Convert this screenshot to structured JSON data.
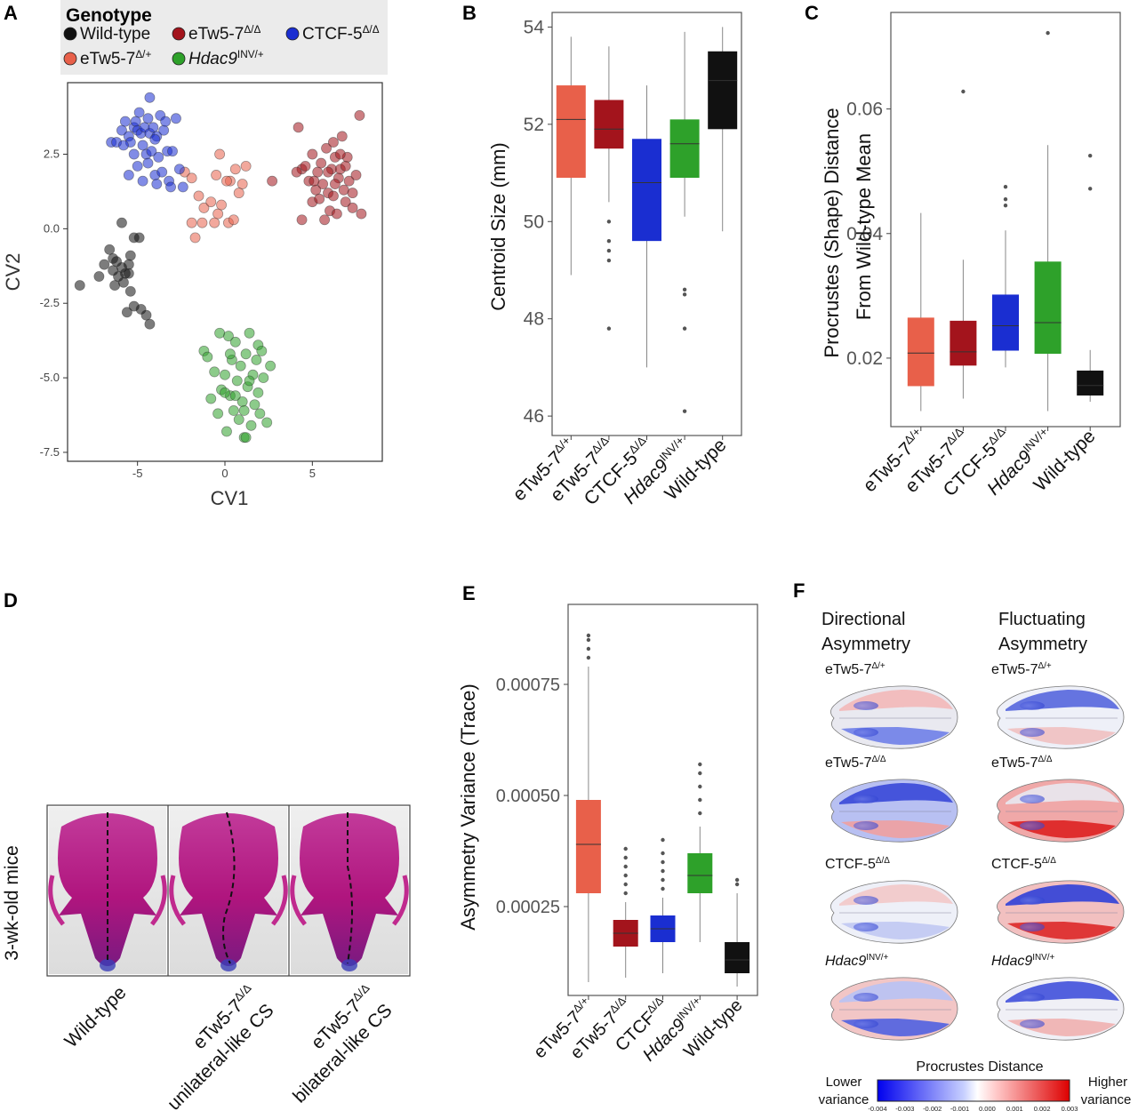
{
  "colors": {
    "wild_type": "#111111",
    "eTw5_het": "#e8604a",
    "eTw5_hom": "#a3141c",
    "ctcf": "#1a2ed1",
    "hdac9": "#2ea12a",
    "legend_bg": "#ebebeb",
    "scale_low": "#0000ff",
    "scale_mid": "#f2f2f2",
    "scale_high": "#e60000"
  },
  "panels": {
    "a": {
      "letter": "A"
    },
    "b": {
      "letter": "B"
    },
    "c": {
      "letter": "C"
    },
    "d": {
      "letter": "D"
    },
    "e": {
      "letter": "E"
    },
    "f": {
      "letter": "F"
    }
  },
  "legend": {
    "title": "Genotype",
    "entries": [
      {
        "key": "wild_type",
        "label": "Wild-type",
        "sup": ""
      },
      {
        "key": "eTw5_hom",
        "label": "eTw5-7",
        "sup": "Δ/Δ"
      },
      {
        "key": "ctcf",
        "label": "CTCF-5",
        "sup": "Δ/Δ"
      },
      {
        "key": "eTw5_het",
        "label": "eTw5-7",
        "sup": "Δ/+"
      },
      {
        "key": "hdac9",
        "label": "Hdac9",
        "sup": "INV/+"
      }
    ]
  },
  "genotype_labels": [
    {
      "key": "eTw5_het",
      "label": "eTw5-7",
      "sup": "Δ/+"
    },
    {
      "key": "eTw5_hom",
      "label": "eTw5-7",
      "sup": "Δ/Δ"
    },
    {
      "key": "ctcf",
      "label": "CTCF-5",
      "sup": "Δ/Δ"
    },
    {
      "key": "hdac9",
      "label": "Hdac9",
      "sup": "INV/+"
    },
    {
      "key": "wild_type",
      "label": "Wild-type",
      "sup": ""
    }
  ],
  "panel_e_ctcf_sup": "Δ/Δ",
  "panel_e_ctcf_label": "CTCF",
  "chart_data": [
    {
      "id": "A",
      "type": "scatter",
      "xlabel": "CV1",
      "ylabel": "CV2",
      "xlim": [
        -9,
        9
      ],
      "ylim": [
        -7.8,
        4.9
      ],
      "xticks": [
        -5,
        0,
        5
      ],
      "yticks": [
        2.5,
        0.0,
        -2.5,
        -5.0,
        -7.5
      ],
      "ytick_labels": [
        "2.5",
        "0.0",
        "-2.5",
        "-5.0",
        "-7.5"
      ],
      "series": [
        {
          "name": "Wild-type",
          "key": "wild_type",
          "points": [
            [
              -8.3,
              -1.9
            ],
            [
              -7.2,
              -1.6
            ],
            [
              -6.9,
              -1.2
            ],
            [
              -6.6,
              -0.7
            ],
            [
              -6.4,
              -1.4
            ],
            [
              -6.2,
              -1.1
            ],
            [
              -6.1,
              -1.6
            ],
            [
              -5.9,
              -1.3
            ],
            [
              -5.8,
              -1.8
            ],
            [
              -5.7,
              -1.5
            ],
            [
              -5.5,
              -1.2
            ],
            [
              -5.4,
              -0.9
            ],
            [
              -5.9,
              0.2
            ],
            [
              -5.2,
              -0.3
            ],
            [
              -4.9,
              -0.3
            ],
            [
              -5.6,
              -2.8
            ],
            [
              -5.2,
              -2.6
            ],
            [
              -4.8,
              -2.7
            ],
            [
              -4.5,
              -2.9
            ],
            [
              -4.3,
              -3.2
            ],
            [
              -6.4,
              -1.0
            ],
            [
              -5.5,
              -1.5
            ],
            [
              -6.3,
              -1.9
            ],
            [
              -5.4,
              -2.1
            ]
          ]
        },
        {
          "name": "eTw5-7 Δ/+",
          "key": "eTw5_het",
          "points": [
            [
              -2.3,
              1.9
            ],
            [
              -1.9,
              1.7
            ],
            [
              -1.5,
              1.1
            ],
            [
              -1.2,
              0.7
            ],
            [
              -0.8,
              0.9
            ],
            [
              -0.4,
              0.5
            ],
            [
              -0.2,
              0.8
            ],
            [
              0.3,
              1.6
            ],
            [
              0.6,
              2.0
            ],
            [
              1.0,
              1.5
            ],
            [
              1.2,
              2.1
            ],
            [
              0.8,
              1.2
            ],
            [
              -0.5,
              1.8
            ],
            [
              -1.9,
              0.2
            ],
            [
              -1.7,
              -0.3
            ],
            [
              -1.3,
              0.2
            ],
            [
              -0.6,
              0.2
            ],
            [
              0.2,
              0.2
            ],
            [
              0.5,
              0.3
            ],
            [
              -0.3,
              2.5
            ],
            [
              0.1,
              1.6
            ]
          ]
        },
        {
          "name": "eTw5-7 Δ/Δ",
          "key": "eTw5_hom",
          "points": [
            [
              2.7,
              1.6
            ],
            [
              4.2,
              3.4
            ],
            [
              4.4,
              2.0
            ],
            [
              4.6,
              2.1
            ],
            [
              4.8,
              1.6
            ],
            [
              5.0,
              0.9
            ],
            [
              5.2,
              1.3
            ],
            [
              5.3,
              1.9
            ],
            [
              5.5,
              2.2
            ],
            [
              5.6,
              1.5
            ],
            [
              5.8,
              2.7
            ],
            [
              5.9,
              1.2
            ],
            [
              6.0,
              0.6
            ],
            [
              6.1,
              2.0
            ],
            [
              6.2,
              1.1
            ],
            [
              6.3,
              2.4
            ],
            [
              6.4,
              0.5
            ],
            [
              6.5,
              1.7
            ],
            [
              6.6,
              2.0
            ],
            [
              6.7,
              3.1
            ],
            [
              6.8,
              1.3
            ],
            [
              6.9,
              0.9
            ],
            [
              7.0,
              2.4
            ],
            [
              7.1,
              1.6
            ],
            [
              7.3,
              0.7
            ],
            [
              7.5,
              1.8
            ],
            [
              7.7,
              3.8
            ],
            [
              7.8,
              0.5
            ],
            [
              4.4,
              0.3
            ],
            [
              5.0,
              2.5
            ],
            [
              5.7,
              0.3
            ],
            [
              6.2,
              2.9
            ],
            [
              6.6,
              2.5
            ],
            [
              5.4,
              1.0
            ],
            [
              6.9,
              2.1
            ],
            [
              4.1,
              1.9
            ],
            [
              7.3,
              1.2
            ],
            [
              5.9,
              1.9
            ],
            [
              6.3,
              1.5
            ],
            [
              5.1,
              1.6
            ]
          ]
        },
        {
          "name": "CTCF-5 Δ/Δ",
          "key": "ctcf",
          "points": [
            [
              -6.5,
              2.9
            ],
            [
              -6.2,
              2.9
            ],
            [
              -5.9,
              3.3
            ],
            [
              -5.7,
              3.6
            ],
            [
              -5.5,
              3.1
            ],
            [
              -5.4,
              2.9
            ],
            [
              -5.2,
              3.4
            ],
            [
              -5.1,
              3.6
            ],
            [
              -5.0,
              3.3
            ],
            [
              -4.9,
              3.9
            ],
            [
              -4.8,
              3.2
            ],
            [
              -4.7,
              2.8
            ],
            [
              -4.6,
              3.4
            ],
            [
              -4.5,
              2.5
            ],
            [
              -4.4,
              3.7
            ],
            [
              -4.3,
              3.2
            ],
            [
              -4.2,
              2.6
            ],
            [
              -4.1,
              3.4
            ],
            [
              -4.0,
              1.8
            ],
            [
              -3.9,
              3.1
            ],
            [
              -3.8,
              2.4
            ],
            [
              -3.7,
              3.8
            ],
            [
              -3.6,
              1.9
            ],
            [
              -3.5,
              3.3
            ],
            [
              -3.3,
              2.6
            ],
            [
              -3.2,
              1.6
            ],
            [
              -3.1,
              1.4
            ],
            [
              -2.8,
              3.7
            ],
            [
              -2.6,
              2.0
            ],
            [
              -2.4,
              1.4
            ],
            [
              -4.3,
              4.4
            ],
            [
              -5.0,
              2.1
            ],
            [
              -5.5,
              1.8
            ],
            [
              -4.7,
              1.6
            ],
            [
              -5.8,
              2.8
            ],
            [
              -4.0,
              3.0
            ],
            [
              -3.4,
              3.6
            ],
            [
              -3.0,
              2.6
            ],
            [
              -4.4,
              2.2
            ],
            [
              -5.2,
              2.5
            ],
            [
              -3.9,
              1.5
            ]
          ]
        },
        {
          "name": "Hdac9 INV/+",
          "key": "hdac9",
          "points": [
            [
              -1.2,
              -4.1
            ],
            [
              -1.0,
              -4.3
            ],
            [
              -0.6,
              -4.8
            ],
            [
              -0.4,
              -6.2
            ],
            [
              -0.2,
              -5.4
            ],
            [
              0.0,
              -4.9
            ],
            [
              0.1,
              -6.8
            ],
            [
              0.2,
              -3.6
            ],
            [
              0.3,
              -5.6
            ],
            [
              0.4,
              -4.4
            ],
            [
              0.5,
              -6.1
            ],
            [
              0.6,
              -3.8
            ],
            [
              0.7,
              -5.1
            ],
            [
              0.8,
              -6.4
            ],
            [
              0.9,
              -4.6
            ],
            [
              1.0,
              -5.8
            ],
            [
              1.1,
              -7.0
            ],
            [
              1.2,
              -4.2
            ],
            [
              1.3,
              -5.3
            ],
            [
              1.4,
              -3.5
            ],
            [
              1.5,
              -6.6
            ],
            [
              1.6,
              -4.9
            ],
            [
              1.7,
              -5.9
            ],
            [
              1.8,
              -4.4
            ],
            [
              1.9,
              -3.9
            ],
            [
              2.0,
              -6.2
            ],
            [
              2.2,
              -5.0
            ],
            [
              2.4,
              -6.5
            ],
            [
              2.6,
              -4.6
            ],
            [
              -0.3,
              -3.5
            ],
            [
              0.6,
              -5.6
            ],
            [
              1.4,
              -5.1
            ],
            [
              -0.8,
              -5.7
            ],
            [
              1.1,
              -6.1
            ],
            [
              0.3,
              -4.2
            ],
            [
              1.9,
              -5.5
            ],
            [
              2.1,
              -4.1
            ],
            [
              0.0,
              -5.5
            ],
            [
              1.2,
              -7.0
            ]
          ]
        }
      ]
    },
    {
      "id": "B",
      "type": "box",
      "ylabel": "Centroid Size (mm)",
      "ylim": [
        45.6,
        54.3
      ],
      "yticks": [
        46,
        48,
        50,
        52,
        54
      ],
      "boxes": [
        {
          "key": "eTw5_het",
          "min": 48.9,
          "q1": 50.9,
          "median": 52.1,
          "q3": 52.8,
          "max": 53.8,
          "outliers": []
        },
        {
          "key": "eTw5_hom",
          "min": 50.4,
          "q1": 51.5,
          "median": 51.9,
          "q3": 52.5,
          "max": 53.6,
          "outliers": [
            50.0,
            49.6,
            49.4,
            49.2,
            47.8
          ]
        },
        {
          "key": "ctcf",
          "min": 47.0,
          "q1": 49.6,
          "median": 50.8,
          "q3": 51.7,
          "max": 52.8,
          "outliers": []
        },
        {
          "key": "hdac9",
          "min": 50.1,
          "q1": 50.9,
          "median": 51.6,
          "q3": 52.1,
          "max": 53.9,
          "outliers": [
            48.6,
            48.5,
            47.8,
            46.1
          ]
        },
        {
          "key": "wild_type",
          "min": 49.8,
          "q1": 51.9,
          "median": 52.9,
          "q3": 53.5,
          "max": 54.0,
          "outliers": []
        }
      ]
    },
    {
      "id": "C",
      "type": "box",
      "ylabel_line1": "Procrustes (Shape) Distance",
      "ylabel_line2": "From Wild-type Mean",
      "ylim": [
        0.009,
        0.0755
      ],
      "yticks": [
        0.02,
        0.04,
        0.06
      ],
      "ytick_labels": [
        "0.02",
        "0.04",
        "0.06"
      ],
      "boxes": [
        {
          "key": "eTw5_het",
          "min": 0.0115,
          "q1": 0.0155,
          "median": 0.0208,
          "q3": 0.0265,
          "max": 0.0433,
          "outliers": []
        },
        {
          "key": "eTw5_hom",
          "min": 0.0135,
          "q1": 0.0188,
          "median": 0.021,
          "q3": 0.026,
          "max": 0.0358,
          "outliers": [
            0.0628
          ]
        },
        {
          "key": "ctcf",
          "min": 0.0185,
          "q1": 0.0212,
          "median": 0.0252,
          "q3": 0.0302,
          "max": 0.0405,
          "outliers": [
            0.0475,
            0.0455,
            0.0445
          ]
        },
        {
          "key": "hdac9",
          "min": 0.0115,
          "q1": 0.0207,
          "median": 0.0257,
          "q3": 0.0355,
          "max": 0.0542,
          "outliers": [
            0.0722
          ]
        },
        {
          "key": "wild_type",
          "min": 0.013,
          "q1": 0.014,
          "median": 0.0156,
          "q3": 0.018,
          "max": 0.0213,
          "outliers": [
            0.0525,
            0.0472
          ]
        }
      ]
    },
    {
      "id": "E",
      "type": "box",
      "ylabel": "Asymmetry Variance (Trace)",
      "ylim": [
        5e-05,
        0.00093
      ],
      "yticks": [
        0.00025,
        0.0005,
        0.00075
      ],
      "ytick_labels": [
        "0.00025",
        "0.00050",
        "0.00075"
      ],
      "boxes": [
        {
          "key": "eTw5_het",
          "min": 8e-05,
          "q1": 0.00028,
          "median": 0.00039,
          "q3": 0.00049,
          "max": 0.00079,
          "outliers": [
            0.00081,
            0.00083,
            0.00085,
            0.00086
          ]
        },
        {
          "key": "eTw5_hom",
          "min": 9e-05,
          "q1": 0.00016,
          "median": 0.00019,
          "q3": 0.00022,
          "max": 0.00026,
          "outliers": [
            0.00028,
            0.0003,
            0.00032,
            0.00034,
            0.00036,
            0.00038
          ]
        },
        {
          "key": "ctcf",
          "min": 0.0001,
          "q1": 0.00017,
          "median": 0.0002,
          "q3": 0.00023,
          "max": 0.00027,
          "outliers": [
            0.00029,
            0.00031,
            0.00033,
            0.00035,
            0.00037,
            0.0004
          ]
        },
        {
          "key": "hdac9",
          "min": 0.00017,
          "q1": 0.00028,
          "median": 0.00032,
          "q3": 0.00037,
          "max": 0.00043,
          "outliers": [
            0.00046,
            0.00049,
            0.00052,
            0.00055,
            0.00057
          ]
        },
        {
          "key": "wild_type",
          "min": 7e-05,
          "q1": 0.0001,
          "median": 0.00013,
          "q3": 0.00017,
          "max": 0.00028,
          "outliers": [
            0.0003,
            0.00031
          ]
        }
      ]
    }
  ],
  "panel_d": {
    "side_label": "3-wk-old mice",
    "captions": [
      {
        "line1": "Wild-type",
        "line2": "",
        "sup": ""
      },
      {
        "line1": "eTw5-7",
        "line2": "unilateral-like CS",
        "sup": "Δ/Δ"
      },
      {
        "line1": "eTw5-7",
        "line2": "bilateral-like CS",
        "sup": "Δ/Δ"
      }
    ]
  },
  "panel_f": {
    "col1_line1": "Directional",
    "col1_line2": "Asymmetry",
    "col2_line1": "Fluctuating",
    "col2_line2": "Asymmetry",
    "rows": [
      {
        "label": "eTw5-7",
        "sup": "Δ/+",
        "italic": false
      },
      {
        "label": "eTw5-7",
        "sup": "Δ/Δ",
        "italic": false
      },
      {
        "label": "CTCF-5",
        "sup": "Δ/Δ",
        "italic": false
      },
      {
        "label": "Hdac9",
        "sup": "INV/+",
        "italic": true
      }
    ],
    "scale_title": "Procrustes Distance",
    "lower_line1": "Lower",
    "lower_line2": "variance",
    "higher_line1": "Higher",
    "higher_line2": "variance",
    "scale_ticks": [
      "-0.004",
      "-0.003",
      "-0.002",
      "-0.001",
      "0.000",
      "0.001",
      "0.002",
      "0.003"
    ]
  }
}
